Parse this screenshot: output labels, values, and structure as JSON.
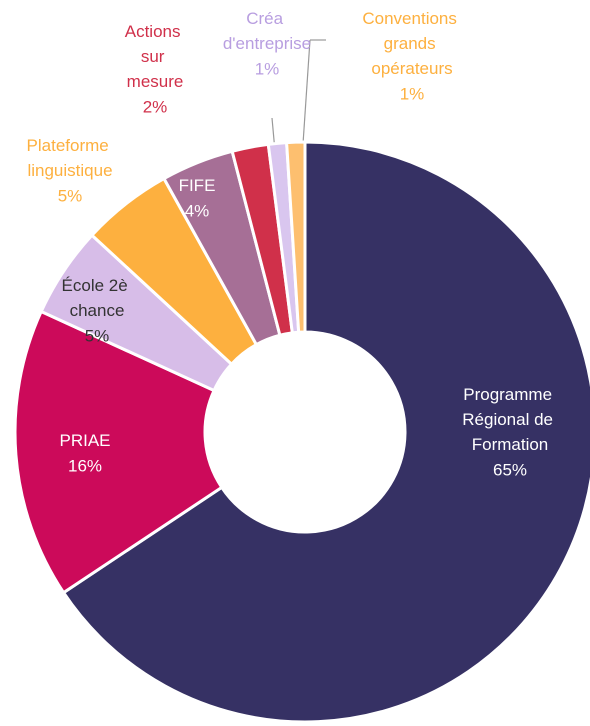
{
  "chart_data": {
    "type": "donut",
    "categories": [
      "Programme Régional de Formation",
      "PRIAE",
      "École 2è chance",
      "Plateforme linguistique",
      "FIFE",
      "Actions sur mesure",
      "Créa d'entreprise",
      "Conventions grands opérateurs"
    ],
    "values": [
      65,
      16,
      5,
      5,
      4,
      2,
      1,
      1
    ],
    "value_labels": [
      "65%",
      "16%",
      "5%",
      "5%",
      "4%",
      "2%",
      "1%",
      "1%"
    ],
    "colors": [
      "#363164",
      "#cc0a5a",
      "#d7bde8",
      "#fdb03f",
      "#a66f96",
      "#d0304a",
      "#d9c6ef",
      "#fdbf6f"
    ]
  }
}
